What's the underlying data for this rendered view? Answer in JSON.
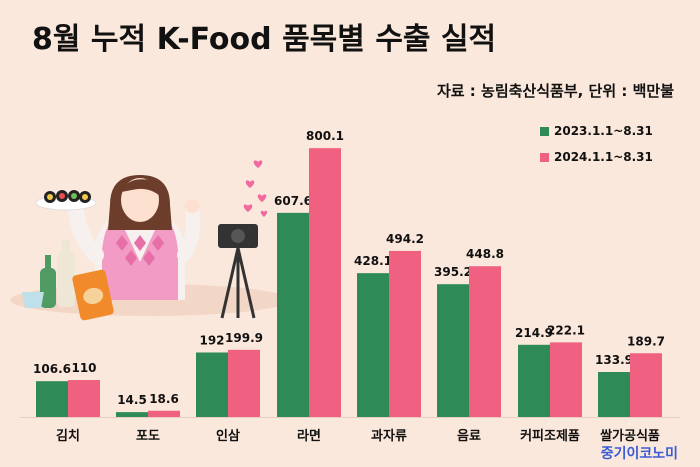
{
  "title": "8월 누적 K-Food 품목별 수출 실적",
  "source": "자료 :  농림축산식품부, 단위 : 백만불",
  "watermark": "중기이코노미",
  "colors": {
    "series_2023": "#2e8b57",
    "series_2024": "#f06080",
    "background": "#fbe8dc"
  },
  "chart_data": {
    "type": "bar",
    "title": "8월 누적 K-Food 품목별 수출 실적",
    "unit": "백만불",
    "categories": [
      "김치",
      "포도",
      "인삼",
      "라면",
      "과자류",
      "음료",
      "커피조제품",
      "쌀가공식품"
    ],
    "series": [
      {
        "name": "2023.1.1~8.31",
        "color": "#2e8b57",
        "values": [
          106.6,
          14.5,
          192,
          607.6,
          428.1,
          395.2,
          214.9,
          133.9
        ]
      },
      {
        "name": "2024.1.1~8.31",
        "color": "#f06080",
        "values": [
          110,
          18.6,
          199.9,
          800.1,
          494.2,
          448.8,
          222.1,
          189.7
        ]
      }
    ],
    "value_labels": [
      [
        "106.6",
        "14.5",
        "192",
        "607.6",
        "428.1",
        "395.2",
        "214.9",
        "133.9"
      ],
      [
        "110",
        "18.6",
        "199.9",
        "800.1",
        "494.2",
        "448.8",
        "222.1",
        "189.7"
      ]
    ],
    "legend_position": "top-right",
    "grid": false
  }
}
